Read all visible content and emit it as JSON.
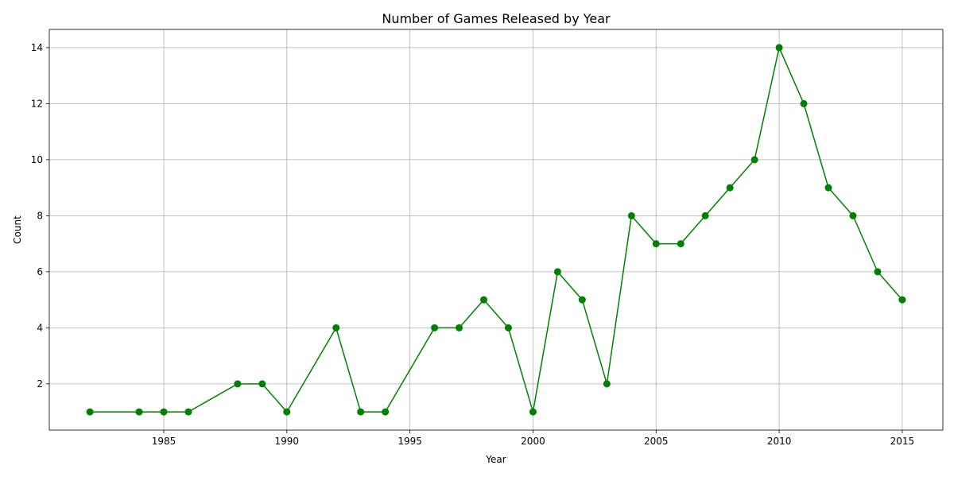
{
  "chart_data": {
    "type": "line",
    "title": "Number of Games Released by Year",
    "xlabel": "Year",
    "ylabel": "Count",
    "xlim": [
      1980.35,
      2016.65
    ],
    "ylim": [
      0.35,
      14.65
    ],
    "xticks": [
      1985,
      1990,
      1995,
      2000,
      2005,
      2010,
      2015
    ],
    "yticks": [
      2,
      4,
      6,
      8,
      10,
      12,
      14
    ],
    "grid": true,
    "series": [
      {
        "color": "#008000",
        "marker": "circle",
        "x": [
          1982,
          1984,
          1985,
          1986,
          1988,
          1989,
          1990,
          1992,
          1993,
          1994,
          1996,
          1997,
          1998,
          1999,
          2000,
          2001,
          2002,
          2003,
          2004,
          2005,
          2006,
          2007,
          2008,
          2009,
          2010,
          2011,
          2012,
          2013,
          2014,
          2015
        ],
        "y": [
          1,
          1,
          1,
          1,
          2,
          2,
          1,
          4,
          1,
          1,
          4,
          4,
          5,
          4,
          1,
          6,
          5,
          2,
          8,
          7,
          7,
          8,
          9,
          10,
          14,
          12,
          9,
          8,
          6,
          5
        ]
      }
    ]
  }
}
